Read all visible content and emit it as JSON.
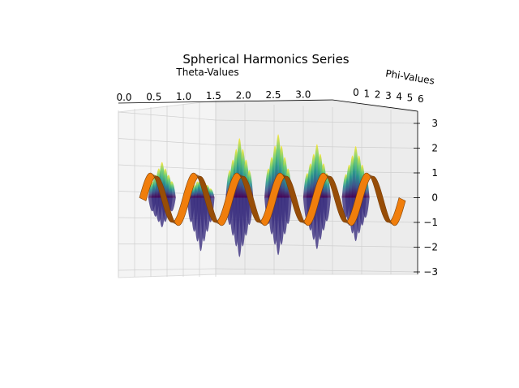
{
  "chart_data": {
    "type": "surface3d",
    "title": "Spherical Harmonics Series",
    "xlabel": "Theta-Values",
    "ylabel": "Phi-Values",
    "zlabel": "",
    "x_ticks": [
      "0.0",
      "0.5",
      "1.0",
      "1.5",
      "2.0",
      "2.5",
      "3.0"
    ],
    "y_ticks": [
      "0",
      "1",
      "2",
      "3",
      "4",
      "5",
      "6"
    ],
    "z_ticks": [
      "3",
      "2",
      "1",
      "0",
      "−1",
      "−2",
      "−3"
    ],
    "xlim": [
      0,
      3.14
    ],
    "ylim": [
      0,
      6.28
    ],
    "zlim": [
      -3,
      3
    ],
    "grid": true,
    "series": [
      {
        "surface": "viridis-colormap",
        "description_z": "oscillating surface, amplitude up to ~3",
        "peaks_theta": [
          0.5,
          1.0,
          1.5,
          2.0,
          2.5,
          3.0
        ],
        "peak_z": [
          1.8,
          1.0,
          3.0,
          3.2,
          2.7,
          2.6
        ],
        "trough_z": [
          -1.5,
          -2.7,
          -3.0,
          -2.9,
          -2.6,
          -2.2
        ]
      },
      {
        "surface": "orange-wave",
        "color": "#f07e0c",
        "amplitude": 1.0,
        "cycles": 6
      }
    ],
    "colors": {
      "pane": "#f2f2f2",
      "grid": "#cfcfcf",
      "orange": "#f07e0c",
      "orange_dark": "#7a3e06"
    }
  }
}
